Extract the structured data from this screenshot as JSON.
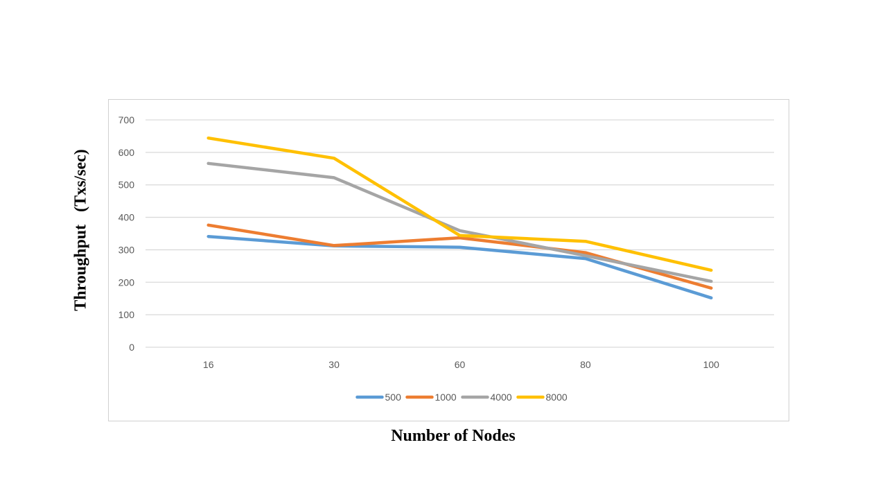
{
  "chart_data": {
    "type": "line",
    "title": "",
    "xlabel": "Number of Nodes",
    "ylabel": "Throughput   (Txs/sec)",
    "categories": [
      "16",
      "30",
      "60",
      "80",
      "100"
    ],
    "ylim": [
      0,
      700
    ],
    "yticks": [
      0,
      100,
      200,
      300,
      400,
      500,
      600,
      700
    ],
    "grid": true,
    "legend_position": "bottom",
    "series": [
      {
        "name": "500",
        "color": "#5B9BD5",
        "values": [
          341,
          312,
          308,
          273,
          152
        ]
      },
      {
        "name": "1000",
        "color": "#ED7D31",
        "values": [
          376,
          313,
          337,
          291,
          182
        ]
      },
      {
        "name": "4000",
        "color": "#A5A5A5",
        "values": [
          566,
          522,
          359,
          282,
          203
        ]
      },
      {
        "name": "8000",
        "color": "#FFC000",
        "values": [
          644,
          582,
          344,
          326,
          237
        ]
      }
    ]
  }
}
